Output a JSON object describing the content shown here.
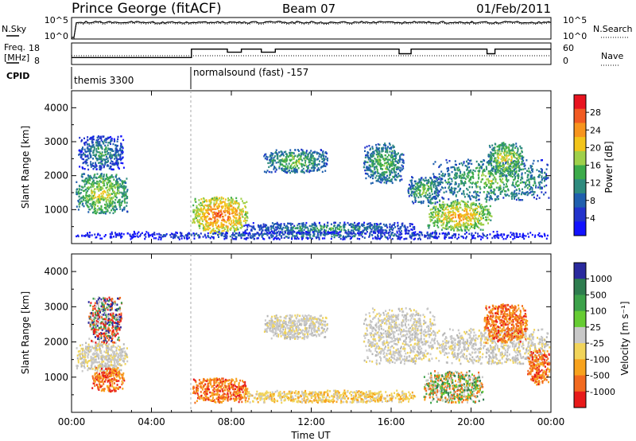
{
  "header": {
    "station": "Prince George (fitACF)",
    "beam": "Beam 07",
    "date": "01/Feb/2011"
  },
  "noise_panel": {
    "left_label": "N.Sky",
    "right_label": "N.Search",
    "left_ticks": [
      "10^5",
      "10^0"
    ],
    "right_ticks": [
      "10^5",
      "10^0"
    ]
  },
  "freq_panel": {
    "left_label_1": "Freq.",
    "left_label_2": "[MHz]",
    "right_label": "Nave",
    "left_ticks": [
      "18",
      "8"
    ],
    "right_ticks": [
      "60",
      "0"
    ]
  },
  "cpid": {
    "label": "CPID",
    "segments": [
      {
        "start_hour": 0,
        "text": "themis 3300"
      },
      {
        "start_hour": 6,
        "text": "normalsound (fast) -157"
      }
    ]
  },
  "time_axis": {
    "title": "Time UT",
    "tick_labels": [
      "00:00",
      "04:00",
      "08:00",
      "12:00",
      "16:00",
      "20:00",
      "00:00"
    ]
  },
  "power_colorbar": {
    "label": "Power [dB]",
    "levels": [
      "28",
      "24",
      "20",
      "16",
      "12",
      "8",
      "4"
    ],
    "colors": [
      "#e8131f",
      "#f15a22",
      "#f7941d",
      "#f2c41a",
      "#9fd04a",
      "#3cab4a",
      "#2e8b7e",
      "#1f5fae",
      "#2233cc",
      "#1212ff"
    ]
  },
  "velocity_colorbar": {
    "label": "Velocity [m s⁻¹]",
    "levels": [
      "1000",
      "500",
      "100",
      "25",
      "-25",
      "-100",
      "-500",
      "-1000"
    ],
    "colors": [
      "#2a2a9e",
      "#2e7d4f",
      "#3ca24a",
      "#66cc33",
      "#c8c8c8",
      "#f1d45a",
      "#f7a21d",
      "#f26a1f",
      "#e81a1a"
    ]
  },
  "chart_data": {
    "type": "heatmap",
    "x_unit": "hours UT",
    "xlim": [
      0,
      24
    ],
    "ylim": [
      0,
      4500
    ],
    "panels": [
      {
        "name": "power",
        "ylabel": "Slant Range [km]",
        "y_ticks": [
          1000,
          2000,
          3000,
          4000
        ],
        "y_tick_labels": [
          "1000",
          "2000",
          "3000",
          "4000"
        ]
      },
      {
        "name": "velocity",
        "ylabel": "Slant Range [km]",
        "y_ticks": [
          1000,
          2000,
          3000,
          4000
        ],
        "y_tick_labels": [
          "1000",
          "2000",
          "3000",
          "4000"
        ]
      }
    ],
    "scatter_regions_power": [
      {
        "x0": 0.2,
        "x1": 2.8,
        "y0": 900,
        "y1": 2100,
        "level": 3
      },
      {
        "x0": 0.3,
        "x1": 2.6,
        "y0": 2200,
        "y1": 3200,
        "level": 1
      },
      {
        "x0": 6.0,
        "x1": 8.8,
        "y0": 300,
        "y1": 1400,
        "level": 5
      },
      {
        "x0": 9.6,
        "x1": 12.8,
        "y0": 2100,
        "y1": 2800,
        "level": 2
      },
      {
        "x0": 14.6,
        "x1": 16.6,
        "y0": 1800,
        "y1": 3000,
        "level": 2
      },
      {
        "x0": 16.8,
        "x1": 18.4,
        "y0": 1200,
        "y1": 2000,
        "level": 2
      },
      {
        "x0": 17.8,
        "x1": 21.0,
        "y0": 400,
        "y1": 1300,
        "level": 4
      },
      {
        "x0": 18.0,
        "x1": 23.9,
        "y0": 1300,
        "y1": 2500,
        "level": 2
      },
      {
        "x0": 20.8,
        "x1": 22.6,
        "y0": 2000,
        "y1": 3000,
        "level": 3
      },
      {
        "x0": 8.6,
        "x1": 17.2,
        "y0": 300,
        "y1": 650,
        "level": 1
      },
      {
        "x0": 0.2,
        "x1": 23.9,
        "y0": 150,
        "y1": 380,
        "level": 0
      }
    ],
    "scatter_regions_velocity": [
      {
        "x0": 0.2,
        "x1": 2.8,
        "y0": 1200,
        "y1": 2000,
        "vel": "low"
      },
      {
        "x0": 1.0,
        "x1": 2.6,
        "y0": 600,
        "y1": 1300,
        "vel": "neg"
      },
      {
        "x0": 0.8,
        "x1": 2.5,
        "y0": 2000,
        "y1": 3300,
        "vel": "mixed"
      },
      {
        "x0": 6.0,
        "x1": 8.8,
        "y0": 300,
        "y1": 1000,
        "vel": "neg"
      },
      {
        "x0": 9.6,
        "x1": 12.8,
        "y0": 2100,
        "y1": 2800,
        "vel": "low"
      },
      {
        "x0": 14.6,
        "x1": 18.2,
        "y0": 1400,
        "y1": 3000,
        "vel": "low"
      },
      {
        "x0": 17.6,
        "x1": 20.6,
        "y0": 300,
        "y1": 1200,
        "vel": "pos"
      },
      {
        "x0": 18.2,
        "x1": 23.9,
        "y0": 1400,
        "y1": 2400,
        "vel": "low"
      },
      {
        "x0": 20.6,
        "x1": 22.8,
        "y0": 2000,
        "y1": 3100,
        "vel": "neg"
      },
      {
        "x0": 22.8,
        "x1": 23.9,
        "y0": 800,
        "y1": 1800,
        "vel": "neg"
      },
      {
        "x0": 8.6,
        "x1": 17.2,
        "y0": 300,
        "y1": 650,
        "vel": "negsmall"
      }
    ],
    "frequency_steps": [
      {
        "x0": 0.0,
        "x1": 6.0,
        "y": 10.5
      },
      {
        "x0": 6.0,
        "x1": 7.8,
        "y": 16.0
      },
      {
        "x0": 7.8,
        "x1": 8.5,
        "y": 14.0
      },
      {
        "x0": 8.5,
        "x1": 9.5,
        "y": 16.0
      },
      {
        "x0": 9.5,
        "x1": 10.2,
        "y": 14.0
      },
      {
        "x0": 10.2,
        "x1": 16.4,
        "y": 16.0
      },
      {
        "x0": 16.4,
        "x1": 17.0,
        "y": 13.0
      },
      {
        "x0": 17.0,
        "x1": 20.8,
        "y": 16.0
      },
      {
        "x0": 20.8,
        "x1": 21.2,
        "y": 13.0
      },
      {
        "x0": 21.2,
        "x1": 24.0,
        "y": 16.0
      }
    ]
  }
}
